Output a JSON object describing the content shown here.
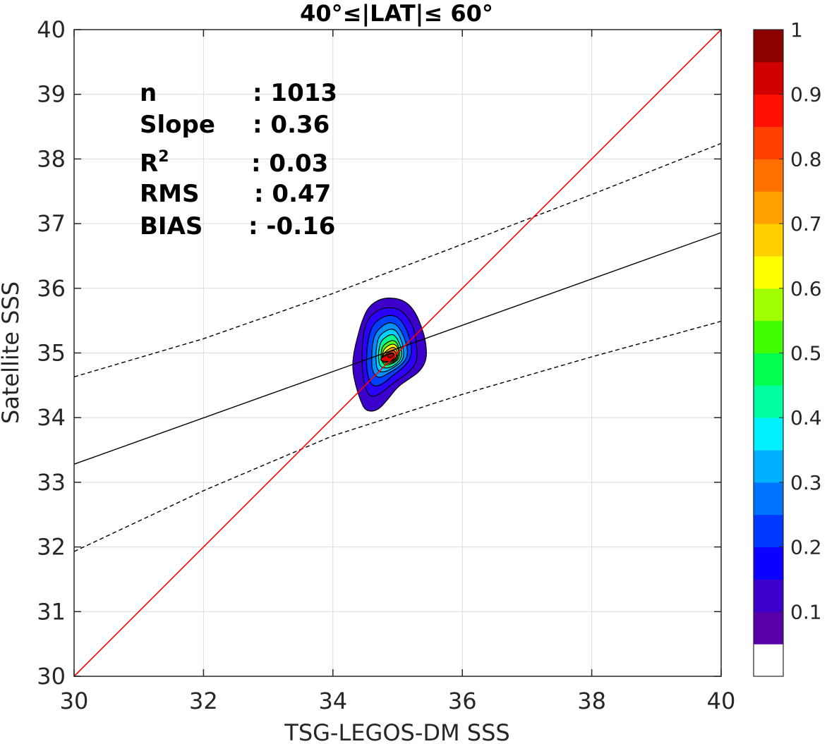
{
  "chart_data": {
    "type": "scatter",
    "title": "40°≤|LAT|≤ 60°",
    "xlabel": "TSG-LEGOS-DM SSS",
    "ylabel": "Satellite SSS",
    "xlim": [
      30,
      40
    ],
    "ylim": [
      30,
      40
    ],
    "xticks": [
      "30",
      "32",
      "34",
      "36",
      "38",
      "40"
    ],
    "yticks": [
      "30",
      "31",
      "32",
      "33",
      "34",
      "35",
      "36",
      "37",
      "38",
      "39",
      "40"
    ],
    "grid": true,
    "stats": [
      {
        "name": "n",
        "value": ": 1013"
      },
      {
        "name": "Slope",
        "value": ": 0.36"
      },
      {
        "name": "R",
        "sup": "2",
        "value": ": 0.03"
      },
      {
        "name": "RMS",
        "value": ": 0.47"
      },
      {
        "name": "BIAS",
        "value": ": -0.16"
      }
    ],
    "identity_line": {
      "x": [
        30,
        40
      ],
      "y": [
        30,
        40
      ],
      "color": "#ff0000"
    },
    "fit_line": {
      "x": [
        30,
        40
      ],
      "y": [
        33.28,
        36.86
      ],
      "color": "#000000"
    },
    "confidence_upper": {
      "x": [
        30,
        32,
        34,
        36,
        38,
        40
      ],
      "y": [
        34.63,
        35.22,
        35.92,
        36.68,
        37.45,
        38.24
      ],
      "color": "#000000",
      "style": "dashed"
    },
    "confidence_lower": {
      "x": [
        30,
        32,
        34,
        36,
        38,
        40
      ],
      "y": [
        31.93,
        32.87,
        33.72,
        34.36,
        34.94,
        35.49
      ],
      "color": "#000000",
      "style": "dashed"
    },
    "density_contours": [
      {
        "level": 0.05,
        "color": "#3c00cc",
        "points": [
          [
            34.55,
            35.72
          ],
          [
            34.75,
            35.85
          ],
          [
            34.98,
            35.85
          ],
          [
            35.15,
            35.78
          ],
          [
            35.28,
            35.62
          ],
          [
            35.38,
            35.38
          ],
          [
            35.44,
            35.15
          ],
          [
            35.45,
            34.9
          ],
          [
            35.35,
            34.72
          ],
          [
            35.18,
            34.6
          ],
          [
            35.0,
            34.48
          ],
          [
            34.85,
            34.28
          ],
          [
            34.68,
            34.1
          ],
          [
            34.5,
            34.1
          ],
          [
            34.42,
            34.28
          ],
          [
            34.35,
            34.5
          ],
          [
            34.3,
            34.75
          ],
          [
            34.32,
            35.0
          ],
          [
            34.38,
            35.25
          ],
          [
            34.45,
            35.5
          ]
        ]
      },
      {
        "level": 0.1,
        "color": "#2a00ff",
        "points": [
          [
            34.55,
            35.55
          ],
          [
            34.75,
            35.7
          ],
          [
            34.98,
            35.7
          ],
          [
            35.12,
            35.6
          ],
          [
            35.25,
            35.4
          ],
          [
            35.3,
            35.1
          ],
          [
            35.3,
            34.85
          ],
          [
            35.15,
            34.68
          ],
          [
            34.95,
            34.55
          ],
          [
            34.75,
            34.38
          ],
          [
            34.58,
            34.3
          ],
          [
            34.48,
            34.5
          ],
          [
            34.45,
            34.8
          ],
          [
            34.45,
            35.1
          ],
          [
            34.48,
            35.35
          ]
        ]
      },
      {
        "level": 0.2,
        "color": "#0040ff",
        "points": [
          [
            34.62,
            35.45
          ],
          [
            34.8,
            35.58
          ],
          [
            34.98,
            35.58
          ],
          [
            35.1,
            35.45
          ],
          [
            35.2,
            35.2
          ],
          [
            35.22,
            34.95
          ],
          [
            35.1,
            34.78
          ],
          [
            34.92,
            34.65
          ],
          [
            34.75,
            34.5
          ],
          [
            34.6,
            34.48
          ],
          [
            34.52,
            34.7
          ],
          [
            34.52,
            35.0
          ],
          [
            34.55,
            35.25
          ]
        ]
      },
      {
        "level": 0.3,
        "color": "#0090ff",
        "points": [
          [
            34.68,
            35.35
          ],
          [
            34.85,
            35.48
          ],
          [
            34.98,
            35.45
          ],
          [
            35.08,
            35.3
          ],
          [
            35.15,
            35.1
          ],
          [
            35.15,
            34.92
          ],
          [
            35.02,
            34.78
          ],
          [
            34.85,
            34.68
          ],
          [
            34.7,
            34.6
          ],
          [
            34.6,
            34.72
          ],
          [
            34.6,
            35.0
          ],
          [
            34.62,
            35.2
          ]
        ]
      },
      {
        "level": 0.4,
        "color": "#00d0ff",
        "points": [
          [
            34.72,
            35.28
          ],
          [
            34.88,
            35.38
          ],
          [
            34.98,
            35.35
          ],
          [
            35.06,
            35.2
          ],
          [
            35.1,
            35.02
          ],
          [
            35.08,
            34.88
          ],
          [
            34.95,
            34.78
          ],
          [
            34.8,
            34.7
          ],
          [
            34.68,
            34.72
          ],
          [
            34.66,
            34.95
          ],
          [
            34.68,
            35.15
          ]
        ]
      },
      {
        "level": 0.5,
        "color": "#00ff90",
        "points": [
          [
            34.75,
            35.2
          ],
          [
            34.9,
            35.3
          ],
          [
            34.98,
            35.25
          ],
          [
            35.05,
            35.1
          ],
          [
            35.07,
            34.95
          ],
          [
            35.0,
            34.84
          ],
          [
            34.86,
            34.76
          ],
          [
            34.72,
            34.78
          ],
          [
            34.7,
            34.98
          ],
          [
            34.72,
            35.1
          ]
        ]
      },
      {
        "level": 0.6,
        "color": "#50ff20",
        "points": [
          [
            34.78,
            35.12
          ],
          [
            34.9,
            35.2
          ],
          [
            34.98,
            35.18
          ],
          [
            35.03,
            35.05
          ],
          [
            35.03,
            34.92
          ],
          [
            34.94,
            34.84
          ],
          [
            34.8,
            34.8
          ],
          [
            34.74,
            34.9
          ],
          [
            34.75,
            35.05
          ]
        ]
      },
      {
        "level": 0.65,
        "color": "#ffff00",
        "points": [
          [
            34.8,
            35.08
          ],
          [
            34.92,
            35.15
          ],
          [
            35.0,
            35.1
          ],
          [
            35.02,
            34.98
          ],
          [
            34.98,
            34.88
          ],
          [
            34.86,
            34.83
          ],
          [
            34.76,
            34.86
          ],
          [
            34.76,
            34.98
          ]
        ]
      },
      {
        "level": 0.75,
        "color": "#ffb000",
        "points": [
          [
            34.82,
            35.03
          ],
          [
            34.93,
            35.1
          ],
          [
            34.99,
            35.05
          ],
          [
            35.0,
            34.95
          ],
          [
            34.94,
            34.87
          ],
          [
            34.82,
            34.85
          ],
          [
            34.76,
            34.9
          ],
          [
            34.78,
            34.98
          ]
        ]
      },
      {
        "level": 0.85,
        "color": "#ff5000",
        "points": [
          [
            34.8,
            34.97
          ],
          [
            34.93,
            35.05
          ],
          [
            34.98,
            35.0
          ],
          [
            34.98,
            34.92
          ],
          [
            34.9,
            34.86
          ],
          [
            34.8,
            34.86
          ],
          [
            34.75,
            34.92
          ]
        ]
      },
      {
        "level": 0.9,
        "color": "#e00000",
        "points": [
          [
            34.78,
            34.94
          ],
          [
            34.92,
            35.02
          ],
          [
            34.96,
            34.96
          ],
          [
            34.94,
            34.9
          ],
          [
            34.84,
            34.86
          ],
          [
            34.74,
            34.88
          ],
          [
            34.74,
            34.92
          ]
        ]
      },
      {
        "level": 0.95,
        "color": "#b00000",
        "points": [
          [
            34.86,
            34.98
          ],
          [
            34.93,
            35.0
          ],
          [
            34.94,
            34.95
          ],
          [
            34.88,
            34.92
          ],
          [
            34.84,
            34.95
          ]
        ]
      }
    ],
    "colorbar": {
      "range": [
        0,
        1
      ],
      "ticks": [
        "0.1",
        "0.2",
        "0.3",
        "0.4",
        "0.5",
        "0.6",
        "0.7",
        "0.8",
        "0.9",
        "1"
      ],
      "colors": [
        "#ffffff",
        "#5a00aa",
        "#3c00cc",
        "#0c00ff",
        "#0038ff",
        "#0074ff",
        "#00b0ff",
        "#00f0ff",
        "#00ffa0",
        "#00ff50",
        "#40ff00",
        "#a0ff00",
        "#ffff00",
        "#ffd000",
        "#ffa000",
        "#ff7000",
        "#ff4000",
        "#ff1000",
        "#d00000",
        "#8c0000"
      ]
    }
  }
}
